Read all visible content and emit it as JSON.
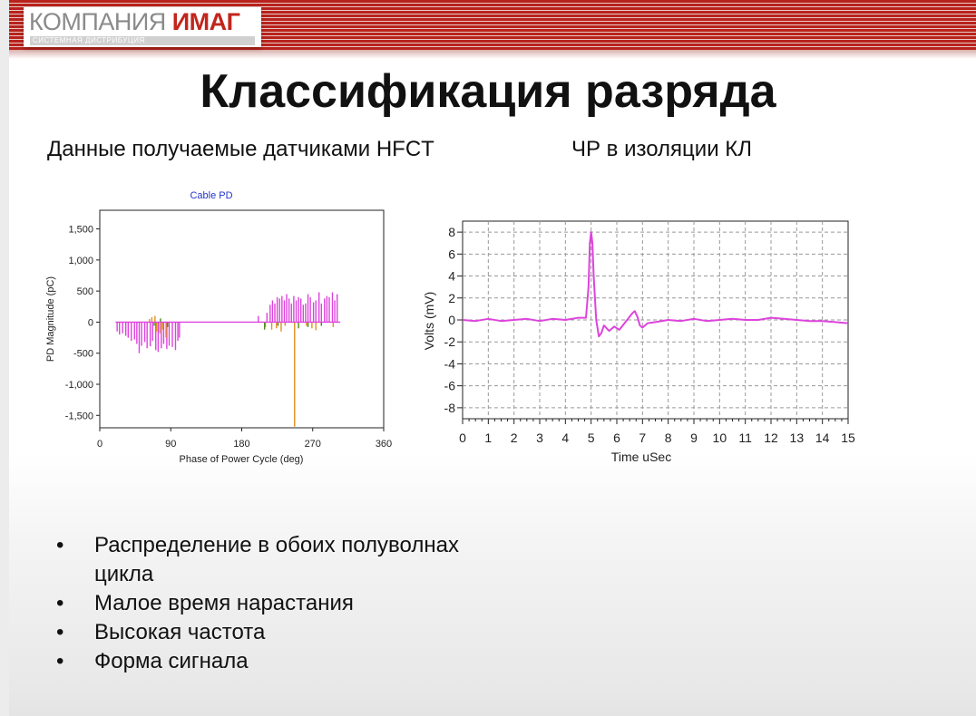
{
  "logo": {
    "part1": "КОМПАНИЯ",
    "part2": "ИМАГ",
    "subtitle": "СИСТЕМНАЯ ДИСТРИБУЦИЯ"
  },
  "title": "Классификация разряда",
  "left_subtitle": "Данные получаемые датчиками HFCT",
  "right_subtitle": "ЧР в изоляции КЛ",
  "bullets": [
    "Распределение в обоих полуволнах цикла",
    "Малое время нарастания",
    "Высокая частота",
    "Форма сигнала"
  ],
  "colors": {
    "header_red": "#b8221c",
    "magenta": "#dd44dd",
    "orange": "#e09020",
    "green": "#4a8a1a"
  },
  "chart_data": [
    {
      "type": "bar",
      "title": "Cable PD",
      "xlabel": "Phase of Power Cycle (deg)",
      "ylabel": "PD Magnitude (pC)",
      "xlim": [
        0,
        360
      ],
      "ylim": [
        -1700,
        1800
      ],
      "xticks": [
        0,
        90,
        180,
        270,
        360
      ],
      "xtick_labels": [
        "0",
        "90",
        "180",
        "270",
        "360"
      ],
      "yticks": [
        1500,
        1000,
        500,
        0,
        -500,
        -1000,
        -1500
      ],
      "ytick_labels": [
        "1,500",
        "1,000",
        "500",
        "0",
        "-500",
        "-1,000",
        "-1,500"
      ],
      "baseline": {
        "x_start": 20,
        "x_end": 305,
        "y": 0
      },
      "series": [
        {
          "color": "#dd44dd",
          "points": [
            [
              22,
              -150
            ],
            [
              25,
              -200
            ],
            [
              29,
              -180
            ],
            [
              33,
              -220
            ],
            [
              36,
              -250
            ],
            [
              40,
              -300
            ],
            [
              44,
              -280
            ],
            [
              47,
              -350
            ],
            [
              50,
              -500
            ],
            [
              53,
              -380
            ],
            [
              57,
              -320
            ],
            [
              60,
              -420
            ],
            [
              64,
              -390
            ],
            [
              67,
              -300
            ],
            [
              71,
              -450
            ],
            [
              74,
              -480
            ],
            [
              78,
              -420
            ],
            [
              81,
              -350
            ],
            [
              85,
              -430
            ],
            [
              88,
              -380
            ],
            [
              92,
              -400
            ],
            [
              96,
              -450
            ],
            [
              99,
              -300
            ],
            [
              101,
              -250
            ],
            [
              201,
              100
            ],
            [
              212,
              150
            ],
            [
              216,
              280
            ],
            [
              219,
              350
            ],
            [
              222,
              300
            ],
            [
              225,
              400
            ],
            [
              228,
              380
            ],
            [
              231,
              420
            ],
            [
              234,
              350
            ],
            [
              237,
              450
            ],
            [
              240,
              380
            ],
            [
              243,
              300
            ],
            [
              246,
              420
            ],
            [
              249,
              350
            ],
            [
              252,
              400
            ],
            [
              255,
              380
            ],
            [
              258,
              280
            ],
            [
              261,
              300
            ],
            [
              264,
              450
            ],
            [
              267,
              400
            ],
            [
              271,
              320
            ],
            [
              274,
              350
            ],
            [
              278,
              480
            ],
            [
              281,
              300
            ],
            [
              285,
              380
            ],
            [
              288,
              420
            ],
            [
              291,
              400
            ],
            [
              295,
              480
            ],
            [
              298,
              350
            ],
            [
              301,
              450
            ]
          ]
        },
        {
          "color": "#e09020",
          "points": [
            [
              63,
              50
            ],
            [
              66,
              80
            ],
            [
              70,
              100
            ],
            [
              72,
              -150
            ],
            [
              76,
              -180
            ],
            [
              80,
              -120
            ],
            [
              84,
              -250
            ],
            [
              210,
              -80
            ],
            [
              218,
              -120
            ],
            [
              224,
              -100
            ],
            [
              230,
              -150
            ],
            [
              235,
              -60
            ],
            [
              247,
              -1680
            ],
            [
              262,
              -60
            ],
            [
              269,
              -100
            ],
            [
              274,
              -130
            ],
            [
              296,
              -80
            ]
          ]
        },
        {
          "color": "#4a8a1a",
          "points": [
            [
              69,
              -60
            ],
            [
              77,
              60
            ],
            [
              86,
              -80
            ],
            [
              209,
              -120
            ],
            [
              226,
              -60
            ],
            [
              252,
              -100
            ],
            [
              264,
              -80
            ],
            [
              281,
              -60
            ]
          ]
        }
      ]
    },
    {
      "type": "line",
      "xlabel": "Time  uSec",
      "ylabel": "Volts (mV)",
      "xlim": [
        0,
        15
      ],
      "ylim": [
        -9,
        9
      ],
      "xticks": [
        0,
        1,
        2,
        3,
        4,
        5,
        6,
        7,
        8,
        9,
        10,
        11,
        12,
        13,
        14,
        15
      ],
      "yticks": [
        8,
        6,
        4,
        2,
        0,
        -2,
        -4,
        -6,
        -8
      ],
      "grid": true,
      "series": [
        {
          "color": "#dd44dd",
          "x": [
            0,
            0.5,
            1,
            1.5,
            2,
            2.5,
            3,
            3.5,
            4,
            4.5,
            4.8,
            4.9,
            4.95,
            5.0,
            5.05,
            5.1,
            5.2,
            5.3,
            5.4,
            5.5,
            5.7,
            5.9,
            6.1,
            6.3,
            6.5,
            6.6,
            6.7,
            6.8,
            6.9,
            7.0,
            7.2,
            7.5,
            8,
            8.5,
            9,
            9.5,
            10,
            10.5,
            11,
            11.5,
            12,
            12.5,
            13,
            13.5,
            14,
            14.5,
            15
          ],
          "y": [
            0.0,
            -0.1,
            0.1,
            -0.1,
            0.0,
            0.1,
            -0.1,
            0.1,
            0.0,
            0.2,
            0.2,
            3.0,
            7.0,
            8.0,
            7.0,
            4.0,
            0.0,
            -1.5,
            -1.2,
            -0.5,
            -1.0,
            -0.6,
            -0.9,
            -0.3,
            0.3,
            0.6,
            0.8,
            0.3,
            -0.5,
            -0.7,
            -0.3,
            -0.2,
            0.0,
            -0.1,
            0.1,
            -0.1,
            0.0,
            0.1,
            0.0,
            0.0,
            0.2,
            0.1,
            0.0,
            -0.1,
            -0.1,
            -0.2,
            -0.3
          ]
        }
      ]
    }
  ]
}
